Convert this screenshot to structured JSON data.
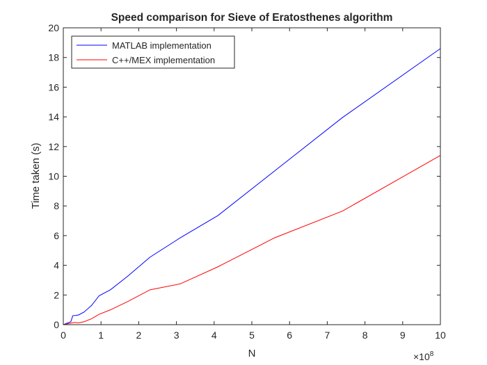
{
  "chart_data": {
    "type": "line",
    "title": "Speed comparison for Sieve of Eratosthenes algorithm",
    "xlabel": "N",
    "ylabel": "Time taken (s)",
    "x_exponent_label": "×10",
    "x_exponent_power": "8",
    "x_scale": 100000000,
    "xlim": [
      0,
      1000000000
    ],
    "ylim": [
      0,
      20
    ],
    "xticks": [
      0,
      100000000,
      200000000,
      300000000,
      400000000,
      500000000,
      600000000,
      700000000,
      800000000,
      900000000,
      1000000000
    ],
    "xtick_labels": [
      "0",
      "1",
      "2",
      "3",
      "4",
      "5",
      "6",
      "7",
      "8",
      "9",
      "10"
    ],
    "yticks": [
      0,
      2,
      4,
      6,
      8,
      10,
      12,
      14,
      16,
      18,
      20
    ],
    "ytick_labels": [
      "0",
      "2",
      "4",
      "6",
      "8",
      "10",
      "12",
      "14",
      "16",
      "18",
      "20"
    ],
    "grid": false,
    "box": true,
    "legend_position": "top-left",
    "series": [
      {
        "name": "MATLAB implementation",
        "color": "#0000ff",
        "x": [
          0,
          10000000,
          20000000,
          25000000,
          40000000,
          55000000,
          75000000,
          95000000,
          125000000,
          170000000,
          230000000,
          310000000,
          410000000,
          560000000,
          740000000,
          1000000000
        ],
        "y": [
          0,
          0.1,
          0.2,
          0.6,
          0.65,
          0.85,
          1.3,
          1.95,
          2.35,
          3.25,
          4.55,
          5.85,
          7.35,
          10.35,
          13.95,
          18.6
        ]
      },
      {
        "name": "C++/MEX implementation",
        "color": "#ff0000",
        "x": [
          0,
          10000000,
          20000000,
          30000000,
          40000000,
          55000000,
          75000000,
          95000000,
          125000000,
          170000000,
          230000000,
          310000000,
          410000000,
          560000000,
          740000000,
          1000000000
        ],
        "y": [
          0,
          0.05,
          0.1,
          0.15,
          0.12,
          0.2,
          0.4,
          0.7,
          1.0,
          1.55,
          2.35,
          2.75,
          3.9,
          5.85,
          7.65,
          11.4
        ]
      }
    ]
  }
}
